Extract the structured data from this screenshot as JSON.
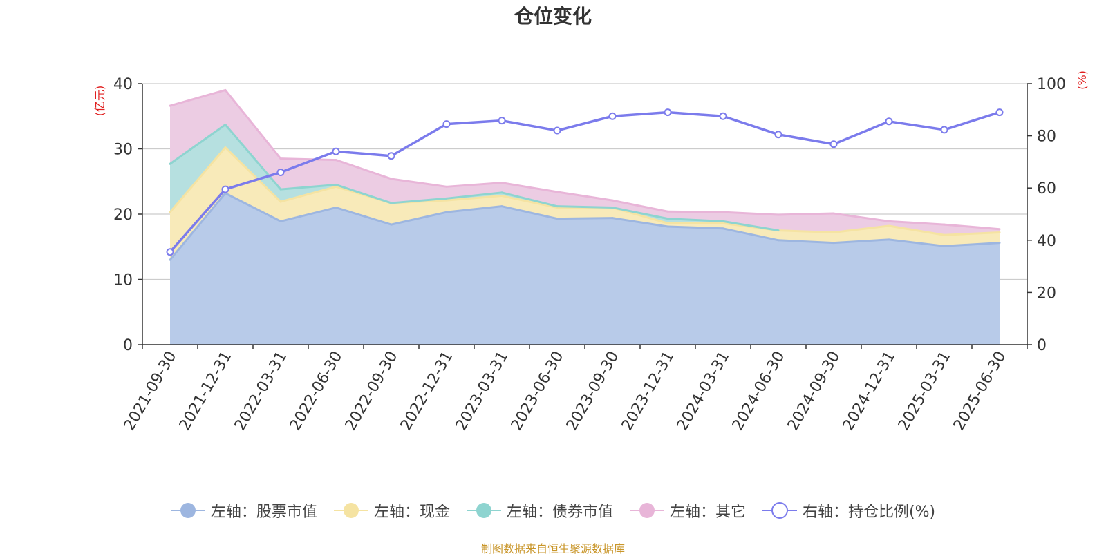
{
  "chart_data": {
    "type": "area",
    "title": "仓位变化",
    "y_left_unit": "(亿元)",
    "y_right_unit": "(%)",
    "ylim_left": [
      0,
      40
    ],
    "yticks_left": [
      "0",
      "10",
      "20",
      "30",
      "40"
    ],
    "ylim_right": [
      0,
      100
    ],
    "yticks_right": [
      "0",
      "20",
      "40",
      "60",
      "80",
      "100"
    ],
    "grid": true,
    "legend_position": "bottom",
    "categories": [
      "2021-09-30",
      "2021-12-31",
      "2022-03-31",
      "2022-06-30",
      "2022-09-30",
      "2022-12-31",
      "2023-03-31",
      "2023-06-30",
      "2023-09-30",
      "2023-12-31",
      "2024-03-31",
      "2024-06-30",
      "2024-09-30",
      "2024-12-31",
      "2025-03-31",
      "2025-06-30"
    ],
    "series": [
      {
        "name": "左轴：股票市值",
        "axis": "left",
        "stack": true,
        "color": "#9db6e0",
        "fill": "#b8cbe9",
        "values": [
          13.0,
          23.2,
          18.9,
          21.0,
          18.4,
          20.3,
          21.2,
          19.3,
          19.4,
          18.1,
          17.8,
          16.0,
          15.6,
          16.1,
          15.1,
          15.6
        ]
      },
      {
        "name": "左轴：现金",
        "axis": "left",
        "stack": true,
        "color": "#f5e3a2",
        "fill": "#f8eab9",
        "values": [
          7.3,
          7.0,
          3.0,
          3.2,
          3.3,
          1.8,
          1.6,
          1.7,
          1.6,
          0.5,
          0.8,
          1.5,
          1.6,
          2.1,
          1.7,
          1.6
        ]
      },
      {
        "name": "左轴：债券市值",
        "axis": "left",
        "stack": true,
        "color": "#8ed4d0",
        "fill": "#b6e0e0",
        "values": [
          7.4,
          3.5,
          1.9,
          0.3,
          0,
          0.3,
          0.5,
          0.2,
          0,
          0.7,
          0.3,
          0,
          0,
          0,
          0,
          0
        ]
      },
      {
        "name": "左轴：其它",
        "axis": "left",
        "stack": true,
        "color": "#e8b5d8",
        "fill": "#ecccE3",
        "values": [
          8.9,
          5.3,
          4.7,
          3.8,
          3.7,
          1.8,
          1.5,
          2.2,
          1.1,
          1.1,
          1.4,
          2.4,
          2.9,
          0.7,
          1.6,
          0.5
        ]
      },
      {
        "name": "右轴：持仓比例(%)",
        "axis": "right",
        "stack": false,
        "color": "#7b7bec",
        "values": [
          35.5,
          59.5,
          66.0,
          74.0,
          72.3,
          84.5,
          85.8,
          82.0,
          87.5,
          89.0,
          87.5,
          80.5,
          76.8,
          85.5,
          82.3,
          89.0
        ]
      }
    ]
  },
  "footer": {
    "source": "制图数据来自恒生聚源数据库"
  }
}
